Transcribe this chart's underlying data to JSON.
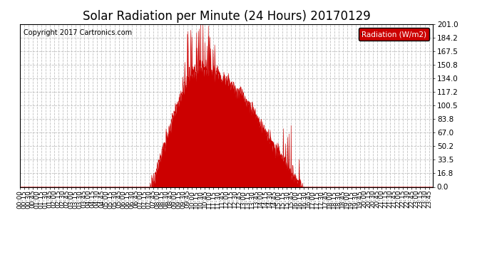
{
  "title": "Solar Radiation per Minute (24 Hours) 20170129",
  "copyright_text": "Copyright 2017 Cartronics.com",
  "legend_label": "Radiation (W/m2)",
  "y_ticks": [
    0.0,
    16.8,
    33.5,
    50.2,
    67.0,
    83.8,
    100.5,
    117.2,
    134.0,
    150.8,
    167.5,
    184.2,
    201.0
  ],
  "y_max": 201.0,
  "fill_color": "#CC0000",
  "line_color": "#CC0000",
  "zero_line_color": "#CC0000",
  "background_color": "#FFFFFF",
  "grid_color": "#BBBBBB",
  "legend_bg": "#CC0000",
  "legend_text_color": "#FFFFFF",
  "title_fontsize": 12,
  "copyright_fontsize": 7,
  "tick_fontsize": 6.5,
  "ytick_fontsize": 7.5,
  "x_tick_interval_minutes": 15,
  "total_minutes": 1440,
  "sunrise_minute": 455,
  "sunset_minute": 985,
  "peak_minute": 630
}
